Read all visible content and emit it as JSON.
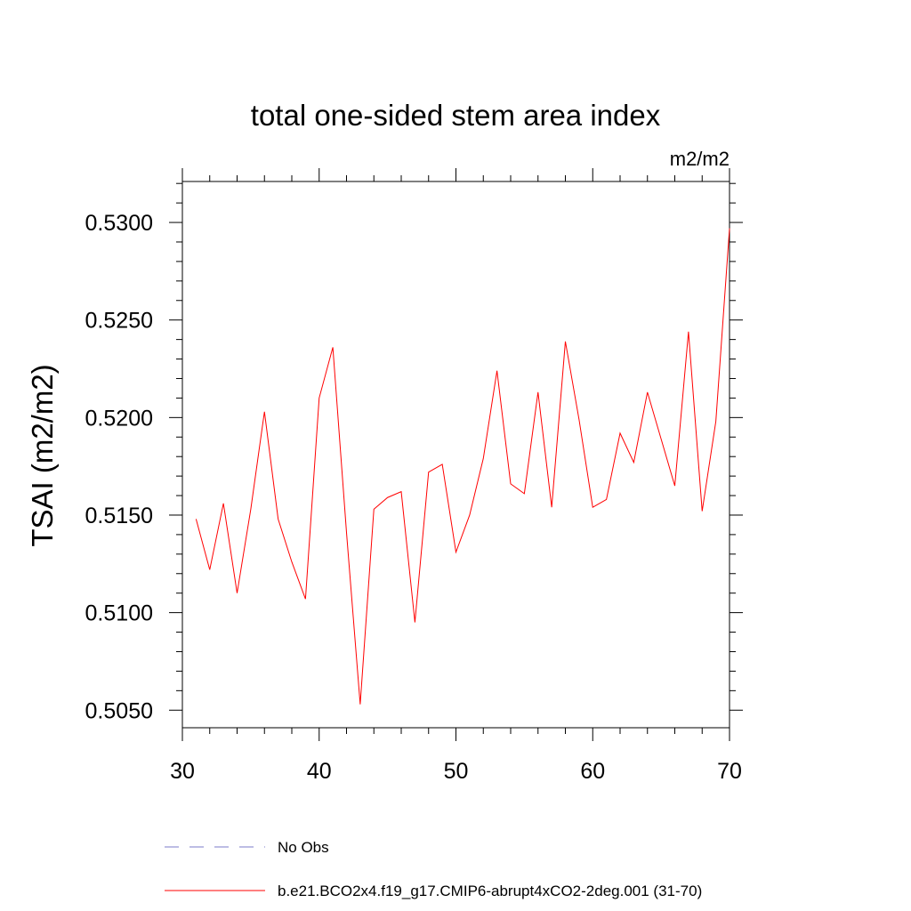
{
  "chart_data": {
    "type": "line",
    "title": "total one-sided stem area index",
    "units_label": "m2/m2",
    "ylabel": "TSAI  (m2/m2)",
    "xlabel": "",
    "xlim": [
      30,
      70
    ],
    "ylim": [
      0.5041,
      0.5321
    ],
    "x_ticks": [
      30,
      40,
      50,
      60,
      70
    ],
    "y_ticks": [
      0.505,
      0.51,
      0.515,
      0.52,
      0.525,
      0.53
    ],
    "y_tick_labels": [
      "0.5050",
      "0.5100",
      "0.5150",
      "0.5200",
      "0.5250",
      "0.5300"
    ],
    "x_tick_labels": [
      "30",
      "40",
      "50",
      "60",
      "70"
    ],
    "grid": false,
    "legend_position": "bottom",
    "legend": [
      {
        "label": "No Obs",
        "color": "#7b7bc8",
        "dash": "dashed"
      },
      {
        "label": "b.e21.BCO2x4.f19_g17.CMIP6-abrupt4xCO2-2deg.001 (31-70)",
        "color": "#ff0000",
        "dash": "solid"
      }
    ],
    "series": [
      {
        "name": "b.e21.BCO2x4.f19_g17.CMIP6-abrupt4xCO2-2deg.001 (31-70)",
        "color": "#ff0000",
        "x": [
          31,
          32,
          33,
          34,
          35,
          36,
          37,
          38,
          39,
          40,
          41,
          42,
          43,
          44,
          45,
          46,
          47,
          48,
          49,
          50,
          51,
          52,
          53,
          54,
          55,
          56,
          57,
          58,
          59,
          60,
          61,
          62,
          63,
          64,
          65,
          66,
          67,
          68,
          69,
          70
        ],
        "values": [
          0.5148,
          0.5122,
          0.5156,
          0.511,
          0.5153,
          0.5203,
          0.5148,
          0.5126,
          0.5107,
          0.521,
          0.5236,
          0.5141,
          0.5053,
          0.5153,
          0.5159,
          0.5162,
          0.5095,
          0.5172,
          0.5176,
          0.5131,
          0.515,
          0.5179,
          0.5224,
          0.5166,
          0.5161,
          0.5213,
          0.5154,
          0.5239,
          0.5199,
          0.5154,
          0.5158,
          0.5192,
          0.5177,
          0.5213,
          0.5189,
          0.5165,
          0.5244,
          0.5152,
          0.5198,
          0.5297
        ]
      }
    ]
  }
}
